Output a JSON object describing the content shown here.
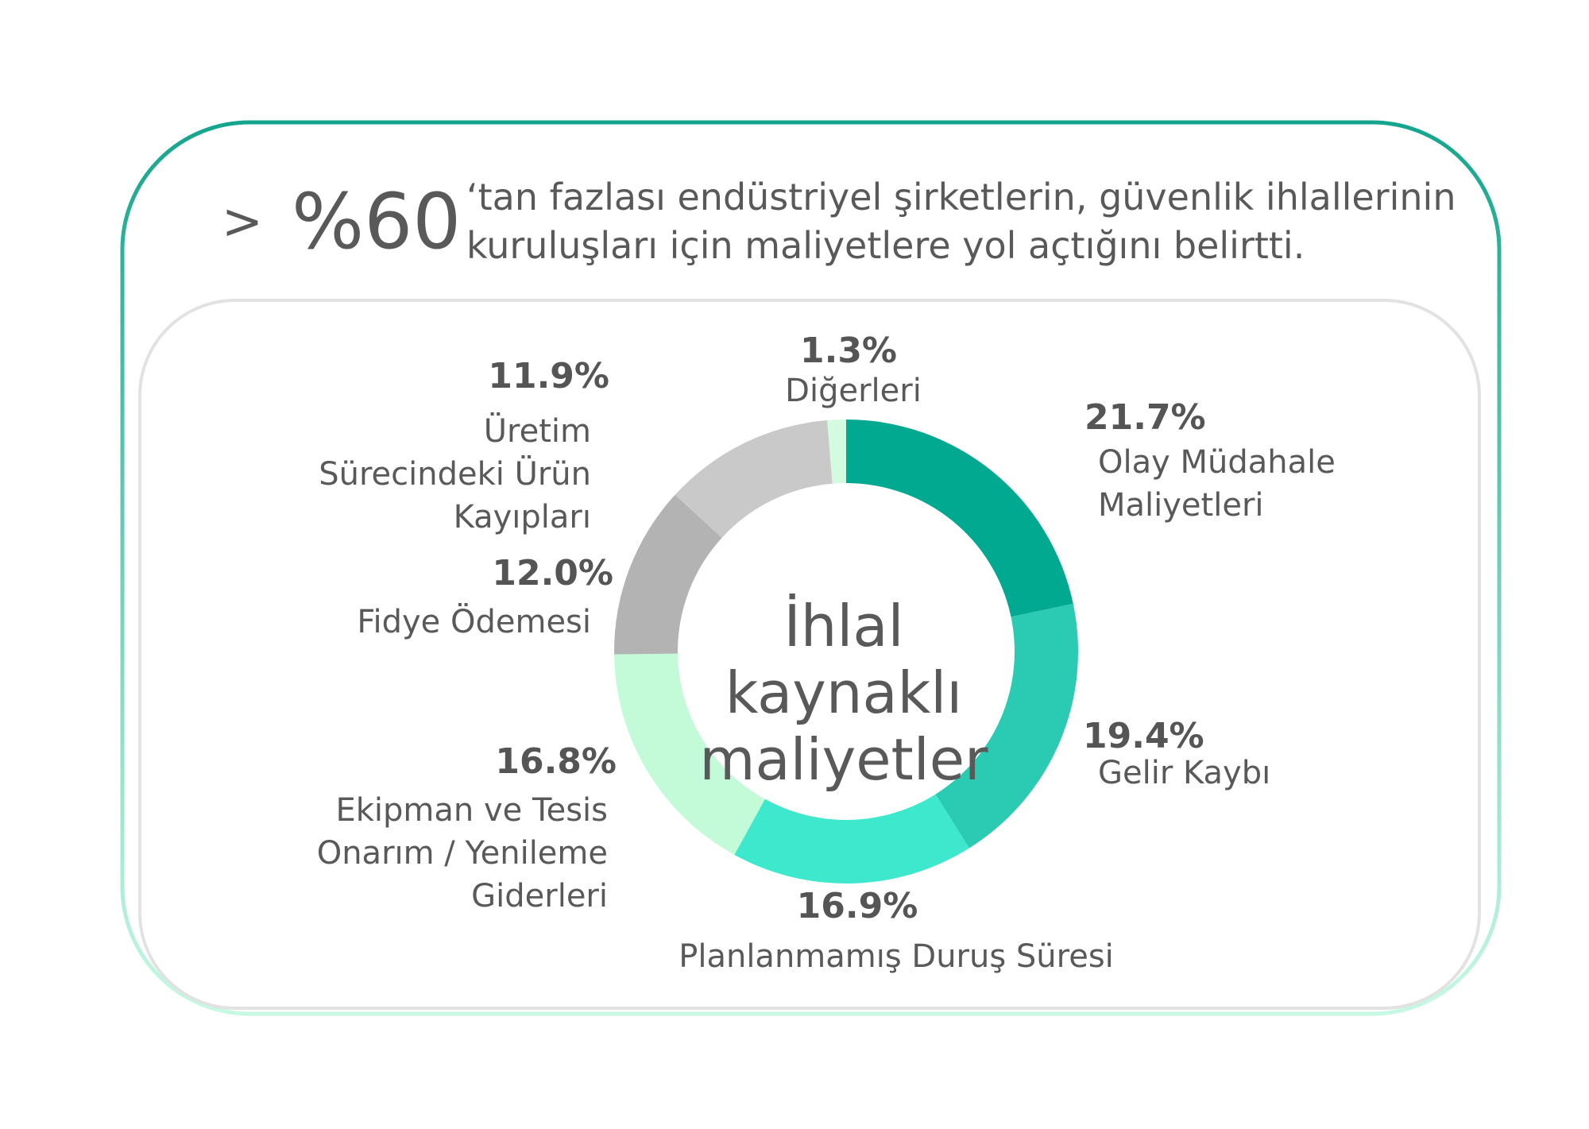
{
  "header": {
    "prefix": ">",
    "highlight": "%60",
    "lines": [
      "‘tan fazlası endüstriyel şirketlerin, güvenlik ihlallerinin",
      "kuruluşları için maliyetlere yol açtığını belirtti."
    ]
  },
  "chart_data": {
    "type": "pie",
    "donut": true,
    "center_label": "İhlal\nkaynaklı\nmaliyetler",
    "categories": [
      "Olay Müdahale\nMaliyetleri",
      "Gelir Kaybı",
      "Planlanmamış Duruş Süresi",
      "Ekipman ve Tesis\nOnarım / Yenileme\nGiderleri",
      "Fidye Ödemesi",
      "Üretim\nSürecindeki Ürün\nKayıpları",
      "Diğerleri"
    ],
    "values": [
      21.7,
      19.4,
      16.9,
      16.8,
      12.0,
      11.9,
      1.3
    ],
    "value_labels": [
      "21.7%",
      "19.4%",
      "16.9%",
      "16.8%",
      "12.0%",
      "11.9%",
      "1.3%"
    ],
    "colors": [
      "#00a98f",
      "#2bcbb3",
      "#3de8cc",
      "#c3fbd9",
      "#b3b3b3",
      "#c9c9c9",
      "#d3fbe0"
    ]
  }
}
